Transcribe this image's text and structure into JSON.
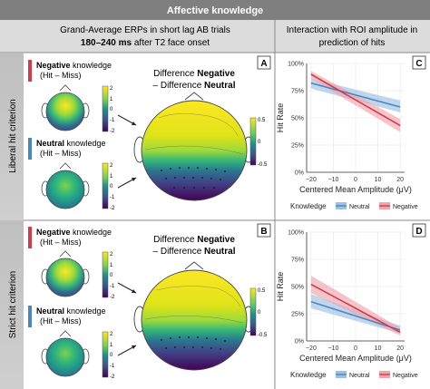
{
  "header": {
    "title": "Affective knowledge"
  },
  "left_header": {
    "line1": "Grand-Average ERPs in short lag AB trials",
    "line2_bold": "180–240 ms",
    "line2_rest": " after T2 face onset"
  },
  "right_header": {
    "line1": "Interaction with ROI amplitude in",
    "line2": "prediction of hits"
  },
  "rows": [
    {
      "side_label": "Liberal hit criterion",
      "panel_map": "A",
      "panel_chart": "C"
    },
    {
      "side_label": "Strict hit criterion",
      "panel_map": "B",
      "panel_chart": "D"
    }
  ],
  "small_maps": {
    "negative_bold": "Negative",
    "negative_rest": " knowledge",
    "neutral_bold": "Neutral",
    "neutral_rest": " knowledge",
    "sub": "(Hit – Miss)",
    "cbar_ticks": [
      "2",
      "1",
      "0",
      "-1",
      "-2"
    ]
  },
  "big_map": {
    "line1_pre": "Difference ",
    "line1_bold": "Negative",
    "line2_pre": "– Difference ",
    "line2_bold": "Neutral",
    "cbar_ticks": [
      "0.5",
      "0",
      "-0.5"
    ]
  },
  "colors": {
    "negative": "#d43a4a",
    "neutral": "#4a86c0",
    "header_bg": "#7f7f7f",
    "subheader_bg": "#dcdcdc"
  },
  "chart_data": [
    {
      "type": "line",
      "panel": "C",
      "xlabel": "Centered Mean Amplitude (μV)",
      "ylabel": "Hit Rate",
      "x_ticks": [
        "−20",
        "−10",
        "0",
        "10",
        "20"
      ],
      "y_ticks": [
        "100%",
        "75%",
        "50%",
        "25%",
        "0%"
      ],
      "xlim": [
        -22,
        22
      ],
      "ylim": [
        0,
        1
      ],
      "legend_title": "Knowledge",
      "series": [
        {
          "name": "Neutral",
          "x": [
            -20,
            20
          ],
          "y": [
            0.82,
            0.6
          ],
          "ci_low": [
            0.77,
            0.55
          ],
          "ci_high": [
            0.86,
            0.66
          ]
        },
        {
          "name": "Negative",
          "x": [
            -20,
            20
          ],
          "y": [
            0.9,
            0.43
          ],
          "ci_low": [
            0.86,
            0.37
          ],
          "ci_high": [
            0.93,
            0.49
          ]
        }
      ]
    },
    {
      "type": "line",
      "panel": "D",
      "xlabel": "Centered Mean Amplitude (μV)",
      "ylabel": "Hit Rate",
      "x_ticks": [
        "−20",
        "−10",
        "0",
        "10",
        "20"
      ],
      "y_ticks": [
        "100%",
        "75%",
        "50%",
        "25%",
        "0%"
      ],
      "xlim": [
        -22,
        22
      ],
      "ylim": [
        0,
        1
      ],
      "legend_title": "Knowledge",
      "series": [
        {
          "name": "Neutral",
          "x": [
            -20,
            20
          ],
          "y": [
            0.36,
            0.1
          ],
          "ci_low": [
            0.3,
            0.07
          ],
          "ci_high": [
            0.43,
            0.14
          ]
        },
        {
          "name": "Negative",
          "x": [
            -20,
            20
          ],
          "y": [
            0.52,
            0.08
          ],
          "ci_low": [
            0.44,
            0.05
          ],
          "ci_high": [
            0.6,
            0.12
          ]
        }
      ]
    }
  ]
}
